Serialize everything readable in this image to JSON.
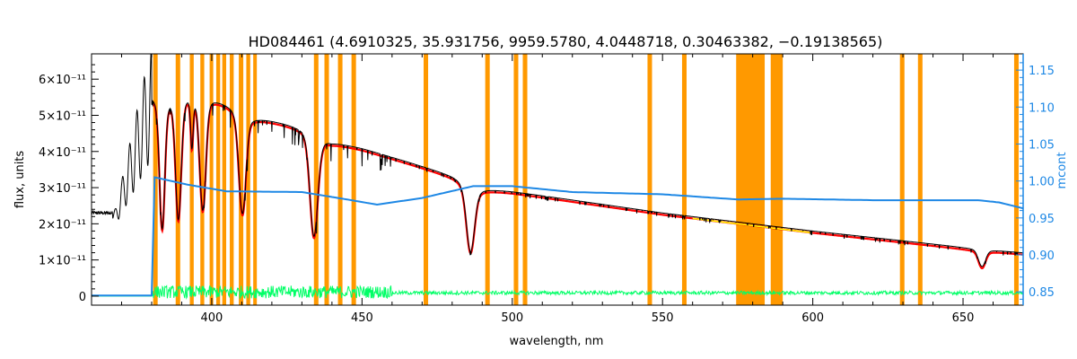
{
  "chart_data": {
    "type": "line",
    "title": "HD084461    (4.6910325, 35.931756, 9959.5780, 4.0448718, 0.30463382, −0.19138565)",
    "xlabel": "wavelength, nm",
    "ylabel": "flux, units",
    "y2label": "mcont",
    "xlim": [
      360,
      670
    ],
    "ylim": [
      -2.5e-12,
      6.7e-11
    ],
    "y2lim": [
      0.832,
      1.172
    ],
    "x_ticks": [
      400,
      450,
      500,
      550,
      600,
      650
    ],
    "x_tick_labels": [
      "400",
      "450",
      "500",
      "550",
      "600",
      "650"
    ],
    "y_ticks": [
      0,
      1e-11,
      2e-11,
      3e-11,
      4e-11,
      5e-11,
      6e-11
    ],
    "y_tick_labels": [
      "0",
      "1×10⁻¹¹",
      "2×10⁻¹¹",
      "3×10⁻¹¹",
      "4×10⁻¹¹",
      "5×10⁻¹¹",
      "6×10⁻¹¹"
    ],
    "y2_ticks": [
      0.85,
      0.9,
      0.95,
      1.0,
      1.05,
      1.1,
      1.15
    ],
    "y2_tick_labels": [
      "0.85",
      "0.90",
      "0.95",
      "1.00",
      "1.05",
      "1.10",
      "1.15"
    ],
    "masked_regions": [
      [
        380.5,
        382.0
      ],
      [
        388.0,
        389.5
      ],
      [
        392.7,
        394.0
      ],
      [
        396.2,
        397.5
      ],
      [
        399.3,
        400.5
      ],
      [
        401.5,
        402.8
      ],
      [
        403.5,
        404.8
      ],
      [
        406.0,
        407.3
      ],
      [
        409.0,
        410.5
      ],
      [
        411.5,
        412.8
      ],
      [
        413.8,
        415.0
      ],
      [
        434.0,
        435.5
      ],
      [
        437.5,
        439.0
      ],
      [
        442.0,
        443.5
      ],
      [
        446.5,
        448.0
      ],
      [
        470.5,
        472.0
      ],
      [
        491.0,
        492.5
      ],
      [
        500.5,
        502.0
      ],
      [
        503.5,
        505.0
      ],
      [
        545.0,
        546.5
      ],
      [
        556.5,
        558.0
      ],
      [
        574.5,
        584.0
      ],
      [
        586.0,
        590.0
      ],
      [
        629.0,
        630.5
      ],
      [
        635.0,
        636.5
      ],
      [
        667.0,
        668.5
      ]
    ],
    "balmer_lines": [
      {
        "center": 656.3,
        "depth": 4.2e-12,
        "width": 1.6
      },
      {
        "center": 486.1,
        "depth": 1.65e-11,
        "width": 1.9
      },
      {
        "center": 434.0,
        "depth": 2.5e-11,
        "width": 1.8
      },
      {
        "center": 410.2,
        "depth": 2.5e-11,
        "width": 1.6
      },
      {
        "center": 397.0,
        "depth": 2.8e-11,
        "width": 1.4
      },
      {
        "center": 388.9,
        "depth": 3e-11,
        "width": 1.3
      },
      {
        "center": 383.5,
        "depth": 3.2e-11,
        "width": 1.2
      },
      {
        "center": 393.4,
        "depth": 1.2e-11,
        "width": 0.6
      }
    ],
    "continuum_anchors": [
      [
        380,
        5.6e-11
      ],
      [
        395,
        5.75e-11
      ],
      [
        410,
        5.2e-11
      ],
      [
        414,
        5e-11
      ],
      [
        430,
        4.7e-11
      ],
      [
        440,
        4.3e-11
      ],
      [
        450,
        4.1e-11
      ],
      [
        480,
        3.35e-11
      ],
      [
        490,
        3e-11
      ],
      [
        500,
        2.9e-11
      ],
      [
        550,
        2.3e-11
      ],
      [
        600,
        1.8e-11
      ],
      [
        650,
        1.35e-11
      ],
      [
        670,
        1.2e-11
      ]
    ],
    "mcont_anchors": [
      [
        360,
        0.845
      ],
      [
        380,
        0.845
      ],
      [
        381,
        1.005
      ],
      [
        392,
        0.995
      ],
      [
        405,
        0.986
      ],
      [
        430,
        0.985
      ],
      [
        445,
        0.975
      ],
      [
        455,
        0.968
      ],
      [
        470,
        0.977
      ],
      [
        487,
        0.993
      ],
      [
        500,
        0.993
      ],
      [
        520,
        0.985
      ],
      [
        550,
        0.982
      ],
      [
        575,
        0.975
      ],
      [
        590,
        0.976
      ],
      [
        620,
        0.974
      ],
      [
        655,
        0.974
      ],
      [
        662,
        0.971
      ],
      [
        670,
        0.963
      ]
    ],
    "series": [
      {
        "name": "observed",
        "color": "#000000"
      },
      {
        "name": "model",
        "color": "#ff0000"
      },
      {
        "name": "fit",
        "color": "#ffff00"
      },
      {
        "name": "residuals",
        "color": "#00ff66"
      },
      {
        "name": "mcont",
        "color": "#1e88e5"
      }
    ],
    "colors": {
      "mask": "#ff9900",
      "right_axis": "#1e88e5"
    },
    "grid": false,
    "legend": "none"
  }
}
